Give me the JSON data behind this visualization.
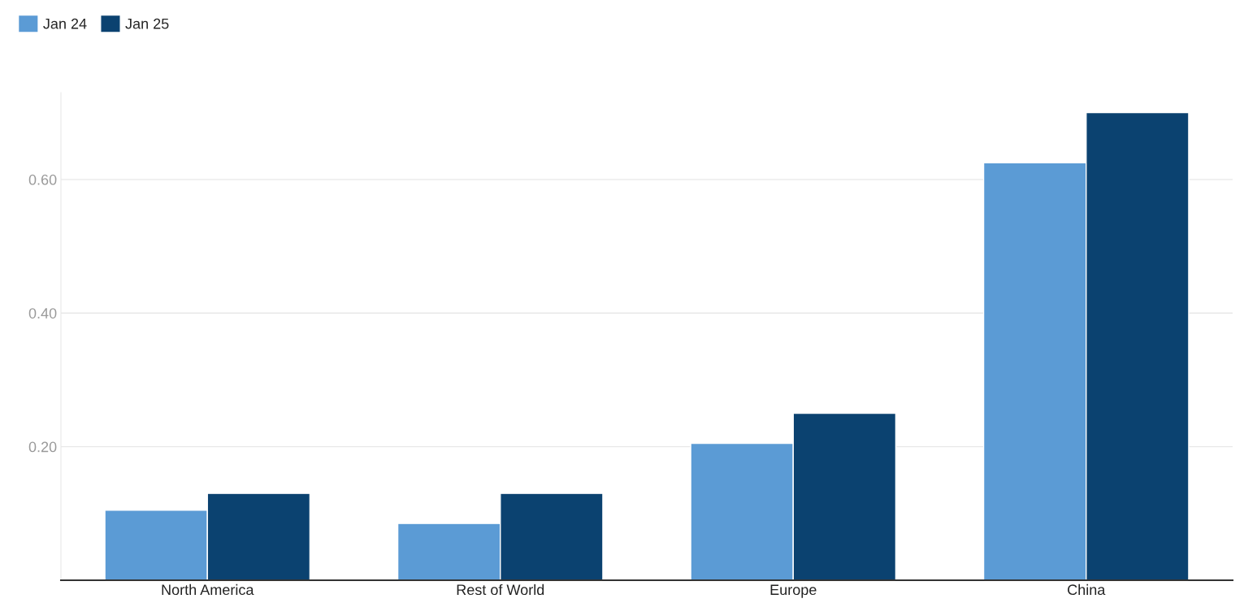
{
  "chart_data": {
    "type": "bar",
    "categories": [
      "North America",
      "Rest of World",
      "Europe",
      "China"
    ],
    "series": [
      {
        "name": "Jan 24",
        "color": "#5b9bd5",
        "values": [
          0.105,
          0.085,
          0.205,
          0.625
        ]
      },
      {
        "name": "Jan 25",
        "color": "#0b4270",
        "values": [
          0.13,
          0.13,
          0.25,
          0.7
        ]
      }
    ],
    "ylim": [
      0,
      0.73
    ],
    "yticks": [
      {
        "value": 0.2,
        "label": "0.20"
      },
      {
        "value": 0.4,
        "label": "0.40"
      },
      {
        "value": 0.6,
        "label": "0.60"
      }
    ],
    "grid": "y",
    "legend": "top left"
  }
}
